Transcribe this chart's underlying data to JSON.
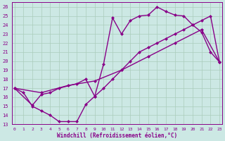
{
  "xlabel": "Windchill (Refroidissement éolien,°C)",
  "line_color": "#880088",
  "bg_color": "#cce8e4",
  "grid_color": "#aaccbb",
  "xlim": [
    -0.3,
    23.3
  ],
  "ylim": [
    13,
    26.5
  ],
  "xticks": [
    0,
    1,
    2,
    3,
    4,
    5,
    6,
    7,
    8,
    9,
    10,
    11,
    12,
    13,
    14,
    15,
    16,
    17,
    18,
    19,
    20,
    21,
    22,
    23
  ],
  "yticks": [
    13,
    14,
    15,
    16,
    17,
    18,
    19,
    20,
    21,
    22,
    23,
    24,
    25,
    26
  ],
  "line1_x": [
    0,
    1,
    2,
    3,
    4,
    5,
    6,
    7,
    8,
    9,
    10,
    11,
    12,
    13,
    14,
    15,
    16,
    17,
    18,
    19,
    20,
    21,
    22,
    23
  ],
  "line1_y": [
    17,
    16.5,
    15.0,
    14.5,
    14.0,
    13.3,
    13.3,
    13.3,
    15.2,
    16.1,
    19.7,
    24.8,
    23.0,
    24.5,
    25.0,
    25.1,
    26.0,
    25.5,
    25.1,
    25.0,
    24.0,
    23.2,
    21.0,
    19.9
  ],
  "line2_x": [
    0,
    2,
    3,
    4,
    5,
    7,
    8,
    9,
    10,
    11,
    12,
    13,
    14,
    15,
    16,
    17,
    18,
    19,
    20,
    21,
    22,
    23
  ],
  "line2_y": [
    17,
    15.1,
    16.3,
    16.5,
    17.0,
    17.5,
    18.0,
    16.1,
    17.0,
    18.0,
    19.0,
    20.0,
    21.0,
    21.5,
    22.0,
    22.5,
    23.0,
    23.5,
    24.0,
    24.5,
    25.0,
    19.9
  ],
  "line3_x": [
    0,
    3,
    6,
    9,
    12,
    15,
    18,
    21,
    23
  ],
  "line3_y": [
    17,
    16.5,
    17.3,
    17.8,
    19.0,
    20.5,
    22.0,
    23.5,
    19.9
  ],
  "marker": "D",
  "markersize": 2.5,
  "linewidth": 1.0
}
